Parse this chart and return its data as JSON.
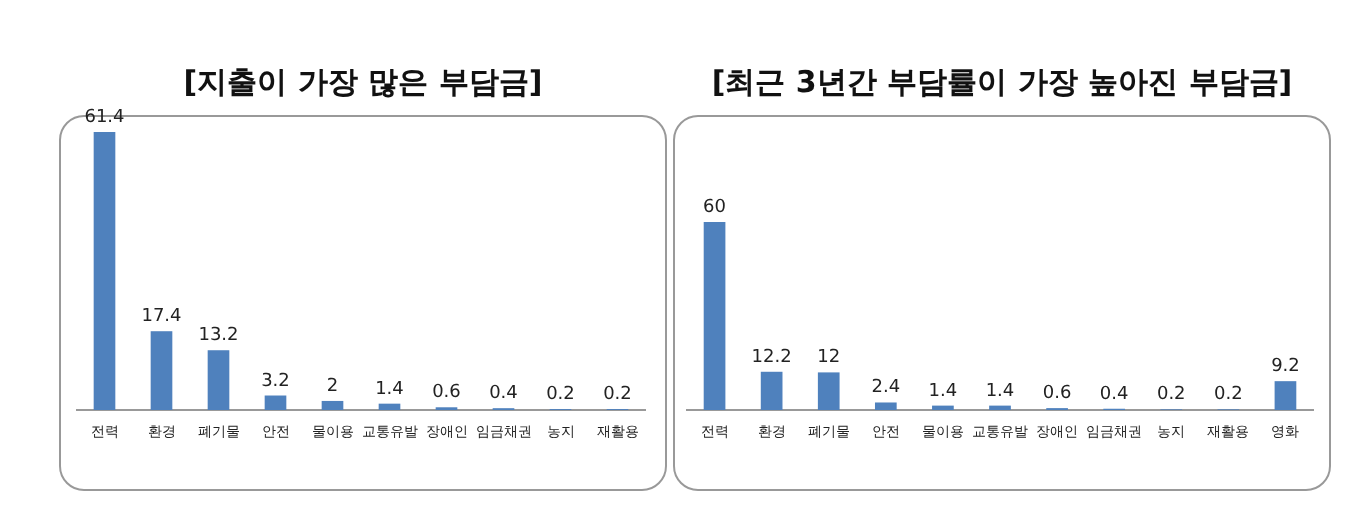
{
  "chart_data": [
    {
      "type": "bar",
      "title": "[지출이 가장 많은 부담금]",
      "categories": [
        "전력",
        "환경",
        "폐기물",
        "안전",
        "물이용",
        "교통유발",
        "장애인",
        "임금채권",
        "농지",
        "재활용"
      ],
      "values": [
        61.4,
        17.4,
        13.2,
        3.2,
        2,
        1.4,
        0.6,
        0.4,
        0.2,
        0.2
      ],
      "color": "#4f81bd",
      "data_labels": true
    },
    {
      "type": "bar",
      "title": "[최근 3년간 부담률이 가장 높아진 부담금]",
      "categories": [
        "전력",
        "환경",
        "폐기물",
        "안전",
        "물이용",
        "교통유발",
        "장애인",
        "임금채권",
        "농지",
        "재활용",
        "영화"
      ],
      "values": [
        60,
        12.2,
        12,
        2.4,
        1.4,
        1.4,
        0.6,
        0.4,
        0.2,
        0.2,
        9.2
      ],
      "color": "#4f81bd",
      "data_labels": true
    }
  ]
}
